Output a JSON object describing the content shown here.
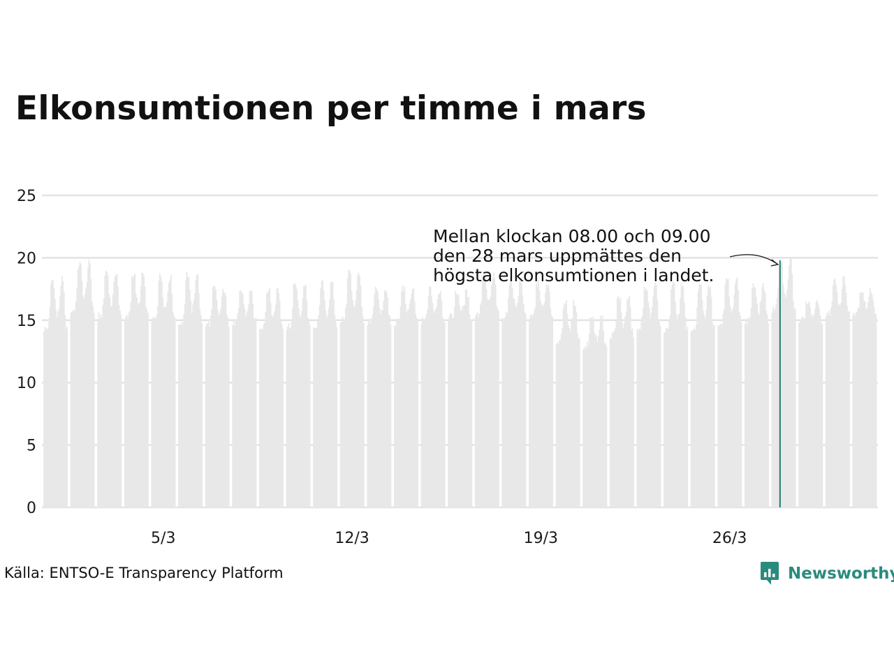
{
  "title": "Elkonsumtionen per timme i mars",
  "source": "Källa: ENTSO-E Transparency Platform",
  "brand": {
    "name": "Newsworthy",
    "icon": "newsworthy-logo-icon",
    "color": "#2b8a7e"
  },
  "colors": {
    "bars": "#e8e8e8",
    "highlight": "#1f7a70",
    "grid": "#e3e3e3",
    "text": "#111111"
  },
  "annotation": {
    "lines": [
      "Mellan klockan 08.00 och 09.00",
      "den 28 mars uppmättes den",
      "högsta elkonsumtionen i landet."
    ],
    "day": 28,
    "hour": 8,
    "value": 19.8
  },
  "chart_data": {
    "type": "bar",
    "title": "Elkonsumtionen per timme i mars",
    "xlabel": "",
    "ylabel": "",
    "ylim": [
      0,
      25
    ],
    "y_ticks": [
      0,
      5,
      10,
      15,
      20,
      25
    ],
    "x_ticks": [
      {
        "label": "5/3",
        "day": 5
      },
      {
        "label": "12/3",
        "day": 12
      },
      {
        "label": "19/3",
        "day": 19
      },
      {
        "label": "26/3",
        "day": 26
      }
    ],
    "hours_per_day": 24,
    "series": [
      {
        "name": "Elkonsumtion per timme",
        "daily_profiles": [
          {
            "day": 1,
            "base": 14.3,
            "peak": 18.2
          },
          {
            "day": 2,
            "base": 15.8,
            "peak": 19.5
          },
          {
            "day": 3,
            "base": 15.3,
            "peak": 18.9
          },
          {
            "day": 4,
            "base": 15.2,
            "peak": 18.7
          },
          {
            "day": 5,
            "base": 15.1,
            "peak": 18.5
          },
          {
            "day": 6,
            "base": 14.8,
            "peak": 18.7
          },
          {
            "day": 7,
            "base": 14.7,
            "peak": 17.5
          },
          {
            "day": 8,
            "base": 14.8,
            "peak": 17.3
          },
          {
            "day": 9,
            "base": 14.5,
            "peak": 17.5
          },
          {
            "day": 10,
            "base": 14.4,
            "peak": 17.9
          },
          {
            "day": 11,
            "base": 14.6,
            "peak": 17.9
          },
          {
            "day": 12,
            "base": 15.0,
            "peak": 18.9
          },
          {
            "day": 13,
            "base": 14.8,
            "peak": 17.6
          },
          {
            "day": 14,
            "base": 14.8,
            "peak": 17.6
          },
          {
            "day": 15,
            "base": 14.9,
            "peak": 17.4
          },
          {
            "day": 16,
            "base": 15.2,
            "peak": 17.2
          },
          {
            "day": 17,
            "base": 15.5,
            "peak": 18.6
          },
          {
            "day": 18,
            "base": 15.4,
            "peak": 18.1
          },
          {
            "day": 19,
            "base": 15.2,
            "peak": 17.9
          },
          {
            "day": 20,
            "base": 13.3,
            "peak": 16.5
          },
          {
            "day": 21,
            "base": 12.9,
            "peak": 15.2
          },
          {
            "day": 22,
            "base": 13.8,
            "peak": 16.8
          },
          {
            "day": 23,
            "base": 14.5,
            "peak": 17.7
          },
          {
            "day": 24,
            "base": 14.2,
            "peak": 17.9
          },
          {
            "day": 25,
            "base": 14.3,
            "peak": 17.8
          },
          {
            "day": 26,
            "base": 14.8,
            "peak": 18.4
          },
          {
            "day": 27,
            "base": 14.9,
            "peak": 17.8
          },
          {
            "day": 28,
            "base": 15.8,
            "peak": 19.8
          },
          {
            "day": 29,
            "base": 15.0,
            "peak": 16.3
          },
          {
            "day": 30,
            "base": 15.5,
            "peak": 18.3
          },
          {
            "day": 31,
            "base": 15.6,
            "peak": 17.4
          }
        ]
      }
    ]
  }
}
